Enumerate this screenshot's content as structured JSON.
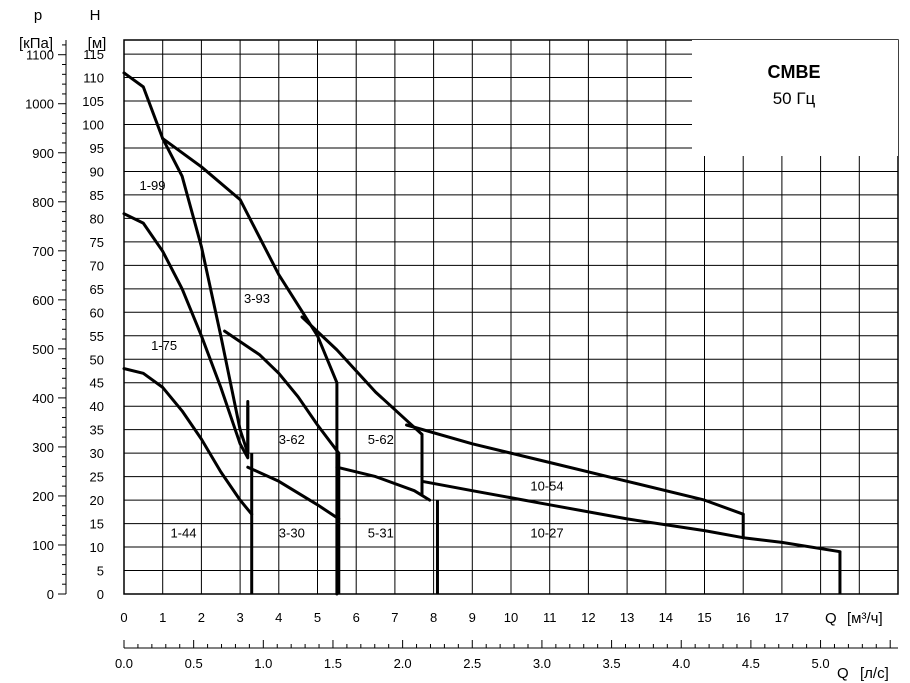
{
  "chart_data": {
    "type": "line",
    "title": "CMBE",
    "subtitle": "50 Гц",
    "y_left": {
      "symbol": "p",
      "unit": "[кПа]",
      "ticks": [
        "0",
        "100",
        "200",
        "300",
        "400",
        "500",
        "600",
        "700",
        "800",
        "900",
        "1000",
        "1100"
      ],
      "range": [
        0,
        1130
      ]
    },
    "y_head": {
      "symbol": "H",
      "unit": "[м]",
      "ticks": [
        "0",
        "5",
        "10",
        "15",
        "20",
        "25",
        "30",
        "35",
        "40",
        "45",
        "50",
        "55",
        "60",
        "65",
        "70",
        "75",
        "80",
        "85",
        "90",
        "95",
        "100",
        "105",
        "110",
        "115"
      ],
      "range": [
        0,
        118
      ]
    },
    "x_flow_m3h": {
      "label": "Q",
      "unit": "[м³/ч]",
      "ticks": [
        "0",
        "1",
        "2",
        "3",
        "4",
        "5",
        "6",
        "7",
        "8",
        "9",
        "10",
        "11",
        "12",
        "13",
        "14",
        "15",
        "16",
        "17"
      ],
      "range": [
        0,
        20
      ]
    },
    "x_flow_ls": {
      "label": "Q",
      "unit": "[л/с]",
      "ticks": [
        "0.0",
        "0.5",
        "1.0",
        "1.5",
        "2.0",
        "2.5",
        "3.0",
        "3.5",
        "4.0",
        "4.5",
        "5.0"
      ],
      "range": [
        0,
        5.556
      ]
    },
    "grid": true,
    "series": [
      {
        "name": "1-99",
        "x": [
          0,
          0.5,
          1.0,
          1.5,
          2.0,
          2.5,
          3.0,
          3.2,
          3.2
        ],
        "y": [
          111,
          108,
          97,
          89,
          74,
          55,
          35,
          30,
          41
        ]
      },
      {
        "name": "1-75",
        "x": [
          0,
          0.5,
          1.0,
          1.5,
          2.0,
          2.5,
          3.0,
          3.2,
          3.2
        ],
        "y": [
          81,
          79,
          73,
          65,
          55,
          44,
          32,
          29,
          40
        ]
      },
      {
        "name": "1-44",
        "x": [
          0,
          0.5,
          1.0,
          1.5,
          2.0,
          2.5,
          3.0,
          3.3
        ],
        "y": [
          48,
          47,
          44,
          39,
          33,
          26,
          20,
          17
        ]
      },
      {
        "name": "3-93",
        "x": [
          1.0,
          2.0,
          3.0,
          4.0,
          5.0,
          5.5,
          5.5
        ],
        "y": [
          97,
          91,
          84,
          68,
          55,
          45,
          0
        ]
      },
      {
        "name": "3-62",
        "x": [
          2.6,
          3.5,
          4.0,
          4.5,
          5.0,
          5.55
        ],
        "y": [
          56,
          51,
          47,
          42,
          36,
          30
        ]
      },
      {
        "name": "3-30",
        "x": [
          3.2,
          4.0,
          5.0,
          5.55
        ],
        "y": [
          27,
          24,
          19,
          16
        ]
      },
      {
        "name": "5-62",
        "x": [
          4.6,
          5.5,
          6.5,
          7.3,
          7.7
        ],
        "y": [
          59,
          52,
          43,
          37,
          34
        ]
      },
      {
        "name": "5-31",
        "x": [
          5.5,
          6.5,
          7.5,
          7.9
        ],
        "y": [
          27,
          25,
          22,
          20
        ]
      },
      {
        "name": "10-54",
        "x": [
          7.3,
          9.0,
          11.0,
          13.0,
          15.0,
          16.0
        ],
        "y": [
          36,
          32,
          28,
          24,
          20,
          17
        ]
      },
      {
        "name": "10-27",
        "x": [
          7.7,
          9.0,
          11.0,
          13.0,
          15.0,
          16.0,
          17.0,
          18.5
        ],
        "y": [
          24,
          22,
          19,
          16,
          13.5,
          12,
          11,
          9
        ]
      }
    ]
  }
}
